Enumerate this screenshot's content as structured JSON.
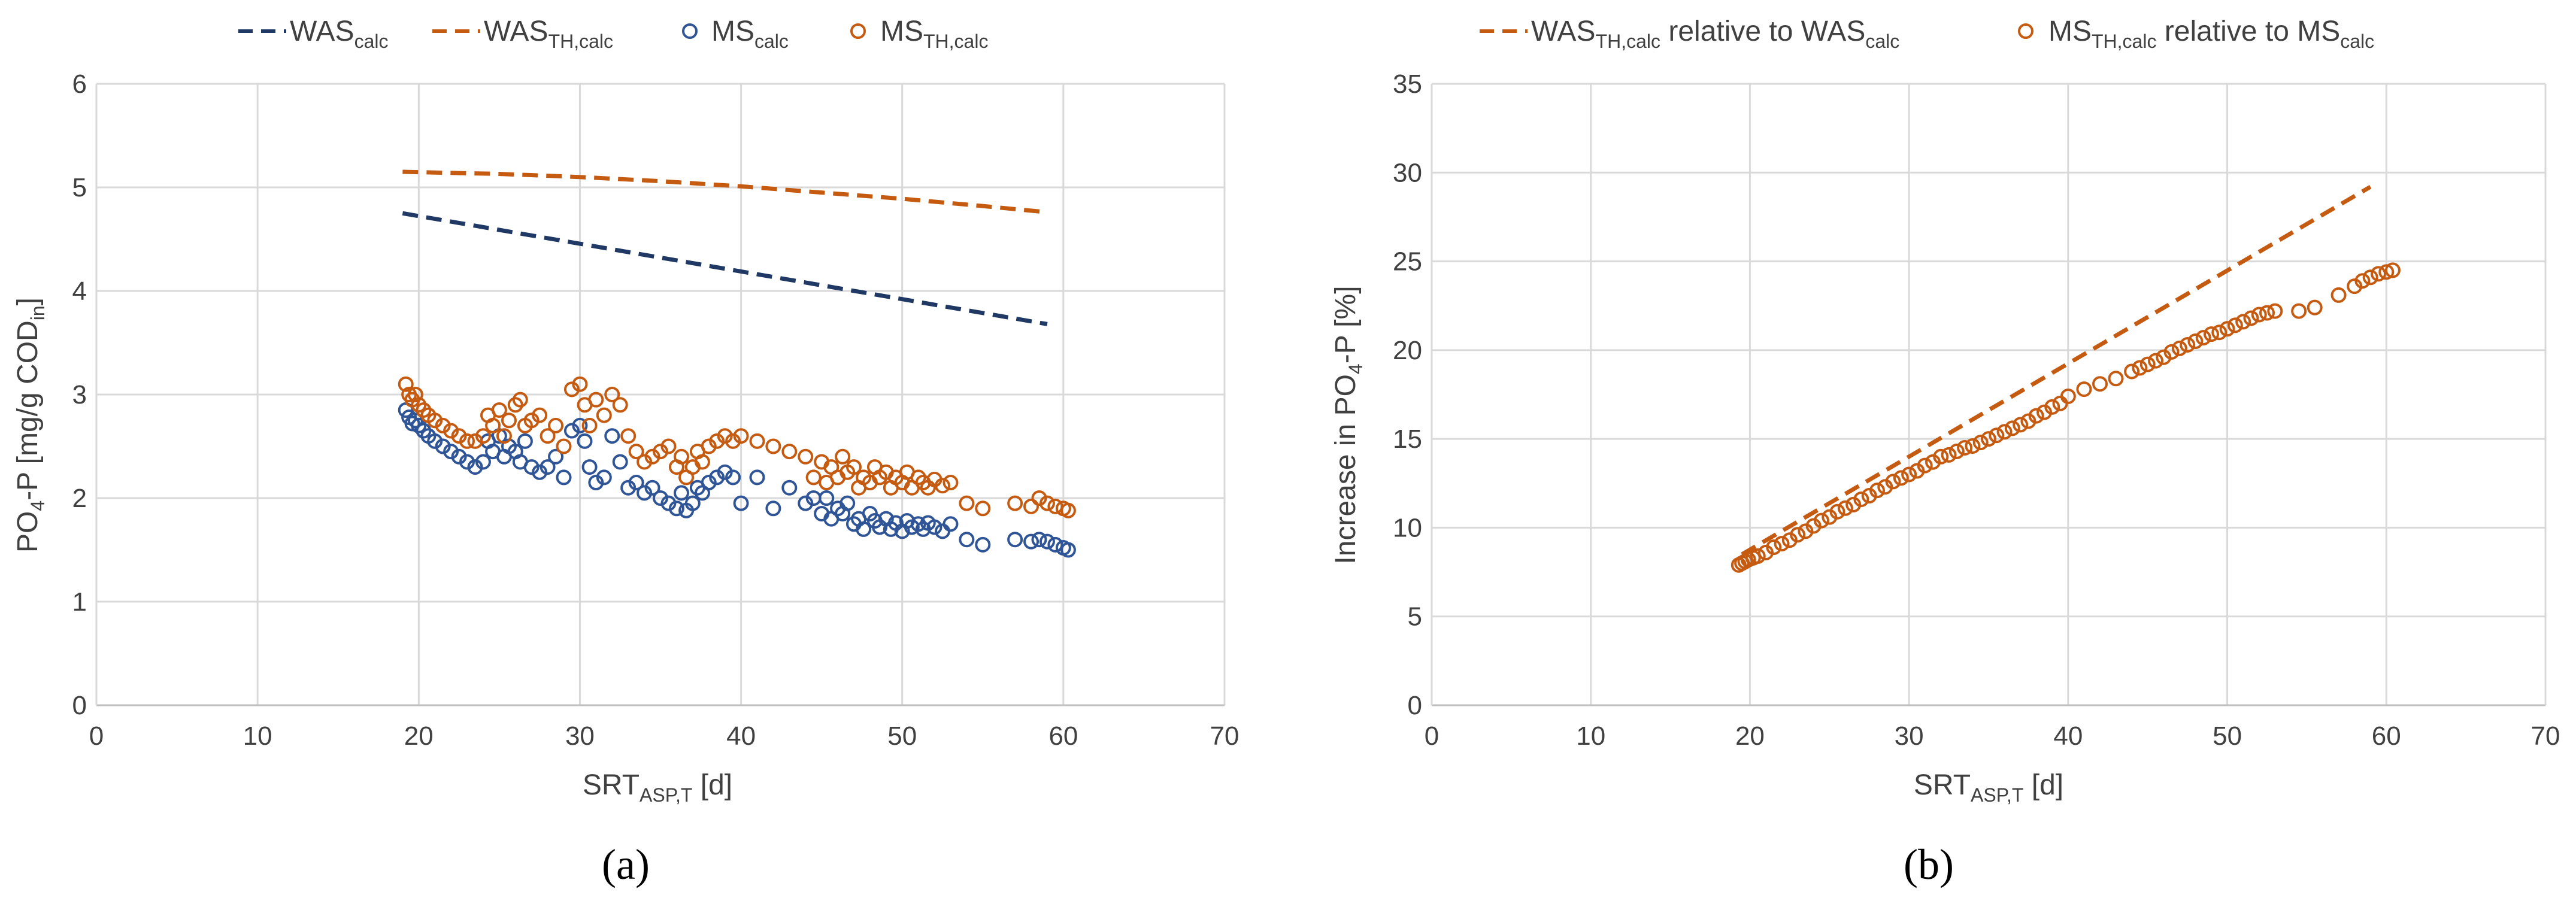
{
  "chart_data": [
    {
      "type": "scatter",
      "panel_label": "(a)",
      "xlabel": {
        "main": "SRT",
        "sub": "ASP,T",
        "unit": " [d]"
      },
      "ylabel": {
        "pre": "PO",
        "sub1": "4",
        "mid": "-P [mg/g COD",
        "sub2": "in",
        "post": "]"
      },
      "xlim": [
        0,
        70
      ],
      "ylim": [
        0,
        6
      ],
      "xticks": [
        "0",
        "10",
        "20",
        "30",
        "40",
        "50",
        "60",
        "70"
      ],
      "yticks": [
        "0",
        "1",
        "2",
        "3",
        "4",
        "5",
        "6"
      ],
      "grid": true,
      "legend_position": "top",
      "series": [
        {
          "name": "WAScalc",
          "label_main": "WAS",
          "label_sub": "calc",
          "kind": "dashed-line",
          "color": "#1f3864",
          "x": [
            19,
            59
          ],
          "y": [
            4.75,
            3.68
          ]
        },
        {
          "name": "WASTH,calc",
          "label_main": "WAS",
          "label_sub": "TH,calc",
          "kind": "dashed-line",
          "color": "#c55a11",
          "x": [
            19,
            25,
            30,
            35,
            40,
            45,
            50,
            55,
            59
          ],
          "y": [
            5.15,
            5.13,
            5.1,
            5.06,
            5.01,
            4.95,
            4.89,
            4.82,
            4.76
          ]
        },
        {
          "name": "MScalc",
          "label_main": "MS",
          "label_sub": "calc",
          "kind": "scatter",
          "color": "#2f5597",
          "x": [
            19.2,
            19.4,
            19.6,
            19.8,
            20.0,
            20.3,
            20.6,
            21.0,
            21.5,
            22.0,
            22.5,
            23.0,
            23.5,
            24.0,
            24.3,
            24.6,
            25.0,
            25.3,
            25.6,
            26.0,
            26.3,
            26.6,
            27.0,
            27.5,
            28.0,
            28.5,
            29.0,
            29.5,
            30.0,
            30.3,
            30.6,
            31.0,
            31.5,
            32.0,
            32.5,
            33.0,
            33.5,
            34.0,
            34.5,
            35.0,
            35.5,
            36.0,
            36.3,
            36.6,
            37.0,
            37.3,
            37.6,
            38.0,
            38.5,
            39.0,
            39.5,
            40.0,
            41.0,
            42.0,
            43.0,
            44.0,
            44.5,
            45.0,
            45.3,
            45.6,
            46.0,
            46.3,
            46.6,
            47.0,
            47.3,
            47.6,
            48.0,
            48.3,
            48.6,
            49.0,
            49.3,
            49.6,
            50.0,
            50.3,
            50.6,
            51.0,
            51.3,
            51.6,
            52.0,
            52.5,
            53.0,
            54.0,
            55.0,
            57.0,
            58.0,
            58.5,
            59.0,
            59.5,
            60.0,
            60.3
          ],
          "y": [
            2.85,
            2.78,
            2.72,
            2.75,
            2.7,
            2.65,
            2.6,
            2.55,
            2.5,
            2.45,
            2.4,
            2.35,
            2.3,
            2.35,
            2.55,
            2.45,
            2.6,
            2.4,
            2.5,
            2.45,
            2.35,
            2.55,
            2.3,
            2.25,
            2.3,
            2.4,
            2.2,
            2.65,
            2.7,
            2.55,
            2.3,
            2.15,
            2.2,
            2.6,
            2.35,
            2.1,
            2.15,
            2.05,
            2.1,
            2.0,
            1.95,
            1.9,
            2.05,
            1.88,
            1.95,
            2.1,
            2.05,
            2.15,
            2.2,
            2.25,
            2.2,
            1.95,
            2.2,
            1.9,
            2.1,
            1.95,
            2.0,
            1.85,
            2.0,
            1.8,
            1.9,
            1.85,
            1.95,
            1.75,
            1.8,
            1.7,
            1.85,
            1.78,
            1.72,
            1.8,
            1.7,
            1.76,
            1.68,
            1.78,
            1.72,
            1.75,
            1.7,
            1.76,
            1.72,
            1.68,
            1.75,
            1.6,
            1.55,
            1.6,
            1.58,
            1.6,
            1.58,
            1.55,
            1.52,
            1.5
          ]
        },
        {
          "name": "MSTH,calc",
          "label_main": "MS",
          "label_sub": "TH,calc",
          "kind": "scatter",
          "color": "#c55a11",
          "x": [
            19.2,
            19.4,
            19.6,
            19.8,
            20.0,
            20.3,
            20.6,
            21.0,
            21.5,
            22.0,
            22.5,
            23.0,
            23.5,
            24.0,
            24.3,
            24.6,
            25.0,
            25.3,
            25.6,
            26.0,
            26.3,
            26.6,
            27.0,
            27.5,
            28.0,
            28.5,
            29.0,
            29.5,
            30.0,
            30.3,
            30.6,
            31.0,
            31.5,
            32.0,
            32.5,
            33.0,
            33.5,
            34.0,
            34.5,
            35.0,
            35.5,
            36.0,
            36.3,
            36.6,
            37.0,
            37.3,
            37.6,
            38.0,
            38.5,
            39.0,
            39.5,
            40.0,
            41.0,
            42.0,
            43.0,
            44.0,
            44.5,
            45.0,
            45.3,
            45.6,
            46.0,
            46.3,
            46.6,
            47.0,
            47.3,
            47.6,
            48.0,
            48.3,
            48.6,
            49.0,
            49.3,
            49.6,
            50.0,
            50.3,
            50.6,
            51.0,
            51.3,
            51.6,
            52.0,
            52.5,
            53.0,
            54.0,
            55.0,
            57.0,
            58.0,
            58.5,
            59.0,
            59.5,
            60.0,
            60.3
          ],
          "y": [
            3.1,
            3.0,
            2.95,
            3.0,
            2.9,
            2.85,
            2.8,
            2.75,
            2.7,
            2.65,
            2.6,
            2.55,
            2.55,
            2.6,
            2.8,
            2.7,
            2.85,
            2.6,
            2.75,
            2.9,
            2.95,
            2.7,
            2.75,
            2.8,
            2.6,
            2.7,
            2.5,
            3.05,
            3.1,
            2.9,
            2.7,
            2.95,
            2.8,
            3.0,
            2.9,
            2.6,
            2.45,
            2.35,
            2.4,
            2.45,
            2.5,
            2.3,
            2.4,
            2.2,
            2.3,
            2.45,
            2.35,
            2.5,
            2.55,
            2.6,
            2.55,
            2.6,
            2.55,
            2.5,
            2.45,
            2.4,
            2.2,
            2.35,
            2.15,
            2.3,
            2.2,
            2.4,
            2.25,
            2.3,
            2.1,
            2.2,
            2.15,
            2.3,
            2.2,
            2.25,
            2.1,
            2.2,
            2.15,
            2.25,
            2.1,
            2.2,
            2.15,
            2.1,
            2.18,
            2.12,
            2.15,
            1.95,
            1.9,
            1.95,
            1.92,
            2.0,
            1.95,
            1.92,
            1.9,
            1.88
          ]
        }
      ]
    },
    {
      "type": "scatter",
      "panel_label": "(b)",
      "xlabel": {
        "main": "SRT",
        "sub": "ASP,T",
        "unit": " [d]"
      },
      "ylabel": {
        "pre": "Increase in PO",
        "sub1": "4",
        "mid": "-P [%]",
        "sub2": "",
        "post": ""
      },
      "xlim": [
        0,
        70
      ],
      "ylim": [
        0,
        35
      ],
      "xticks": [
        "0",
        "10",
        "20",
        "30",
        "40",
        "50",
        "60",
        "70"
      ],
      "yticks": [
        "0",
        "5",
        "10",
        "15",
        "20",
        "25",
        "30",
        "35"
      ],
      "grid": true,
      "legend_position": "top",
      "series": [
        {
          "name": "WASTH,calc relative to WAScalc",
          "label_main": "WAS",
          "label_sub": "TH,calc",
          "label_rest": " relative to WAS",
          "label_sub2": "calc",
          "kind": "dashed-line",
          "color": "#c55a11",
          "x": [
            19.5,
            59
          ],
          "y": [
            8.5,
            29.2
          ]
        },
        {
          "name": "MSTH,calc relative to MScalc",
          "label_main": "MS",
          "label_sub": "TH,calc",
          "label_rest": " relative to MS",
          "label_sub2": "calc",
          "kind": "scatter",
          "color": "#c55a11",
          "x": [
            19.3,
            19.5,
            19.7,
            19.9,
            20.2,
            20.5,
            21.0,
            21.5,
            22.0,
            22.5,
            23.0,
            23.5,
            24.0,
            24.5,
            25.0,
            25.5,
            26.0,
            26.5,
            27.0,
            27.5,
            28.0,
            28.5,
            29.0,
            29.5,
            30.0,
            30.5,
            31.0,
            31.5,
            32.0,
            32.5,
            33.0,
            33.5,
            34.0,
            34.5,
            35.0,
            35.5,
            36.0,
            36.5,
            37.0,
            37.5,
            38.0,
            38.5,
            39.0,
            39.5,
            40.0,
            41.0,
            42.0,
            43.0,
            44.0,
            44.5,
            45.0,
            45.5,
            46.0,
            46.5,
            47.0,
            47.5,
            48.0,
            48.5,
            49.0,
            49.5,
            50.0,
            50.5,
            51.0,
            51.5,
            52.0,
            52.5,
            53.0,
            54.5,
            55.5,
            57.0,
            58.0,
            58.5,
            59.0,
            59.5,
            60.0,
            60.4
          ],
          "y": [
            7.9,
            8.0,
            8.1,
            8.2,
            8.3,
            8.4,
            8.6,
            8.9,
            9.1,
            9.3,
            9.6,
            9.8,
            10.1,
            10.4,
            10.6,
            10.9,
            11.1,
            11.3,
            11.6,
            11.8,
            12.1,
            12.3,
            12.6,
            12.8,
            13.0,
            13.2,
            13.5,
            13.7,
            14.0,
            14.1,
            14.3,
            14.5,
            14.6,
            14.8,
            15.0,
            15.2,
            15.4,
            15.6,
            15.8,
            16.0,
            16.3,
            16.5,
            16.8,
            17.0,
            17.4,
            17.8,
            18.1,
            18.4,
            18.8,
            19.0,
            19.2,
            19.4,
            19.6,
            19.9,
            20.1,
            20.3,
            20.5,
            20.7,
            20.9,
            21.0,
            21.2,
            21.4,
            21.6,
            21.8,
            22.0,
            22.1,
            22.2,
            22.2,
            22.4,
            23.1,
            23.6,
            23.9,
            24.1,
            24.3,
            24.4,
            24.5
          ]
        }
      ]
    }
  ]
}
